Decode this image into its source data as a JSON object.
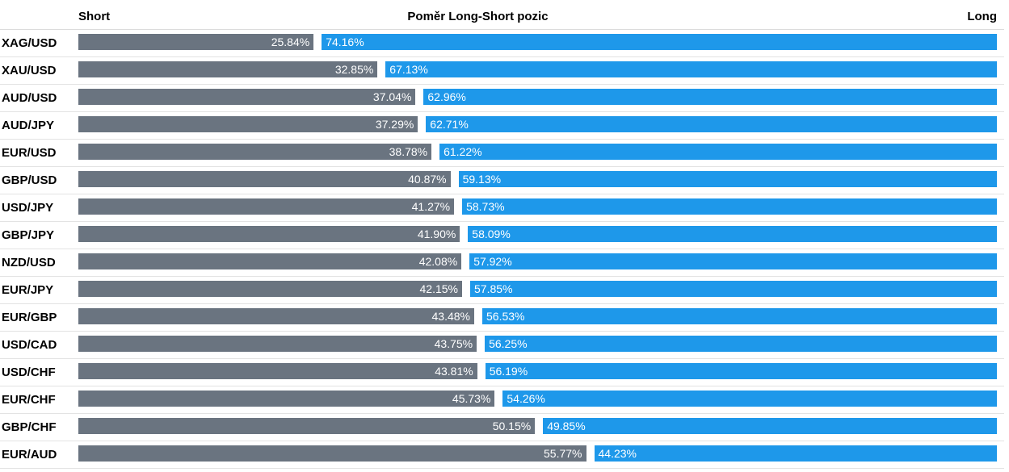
{
  "chart_data": {
    "type": "bar",
    "stacked": true,
    "orientation": "horizontal",
    "title": "Poměr Long-Short pozic",
    "short_label": "Short",
    "long_label": "Long",
    "colors": {
      "short": "#6a7480",
      "long": "#1e98ea"
    },
    "xlim": [
      0,
      100
    ],
    "rows": [
      {
        "pair": "XAG/USD",
        "short": "25.84%",
        "long": "74.16%"
      },
      {
        "pair": "XAU/USD",
        "short": "32.85%",
        "long": "67.13%"
      },
      {
        "pair": "AUD/USD",
        "short": "37.04%",
        "long": "62.96%"
      },
      {
        "pair": "AUD/JPY",
        "short": "37.29%",
        "long": "62.71%"
      },
      {
        "pair": "EUR/USD",
        "short": "38.78%",
        "long": "61.22%"
      },
      {
        "pair": "GBP/USD",
        "short": "40.87%",
        "long": "59.13%"
      },
      {
        "pair": "USD/JPY",
        "short": "41.27%",
        "long": "58.73%"
      },
      {
        "pair": "GBP/JPY",
        "short": "41.90%",
        "long": "58.09%"
      },
      {
        "pair": "NZD/USD",
        "short": "42.08%",
        "long": "57.92%"
      },
      {
        "pair": "EUR/JPY",
        "short": "42.15%",
        "long": "57.85%"
      },
      {
        "pair": "EUR/GBP",
        "short": "43.48%",
        "long": "56.53%"
      },
      {
        "pair": "USD/CAD",
        "short": "43.75%",
        "long": "56.25%"
      },
      {
        "pair": "USD/CHF",
        "short": "43.81%",
        "long": "56.19%"
      },
      {
        "pair": "EUR/CHF",
        "short": "45.73%",
        "long": "54.26%"
      },
      {
        "pair": "GBP/CHF",
        "short": "50.15%",
        "long": "49.85%"
      },
      {
        "pair": "EUR/AUD",
        "short": "55.77%",
        "long": "44.23%"
      }
    ]
  }
}
